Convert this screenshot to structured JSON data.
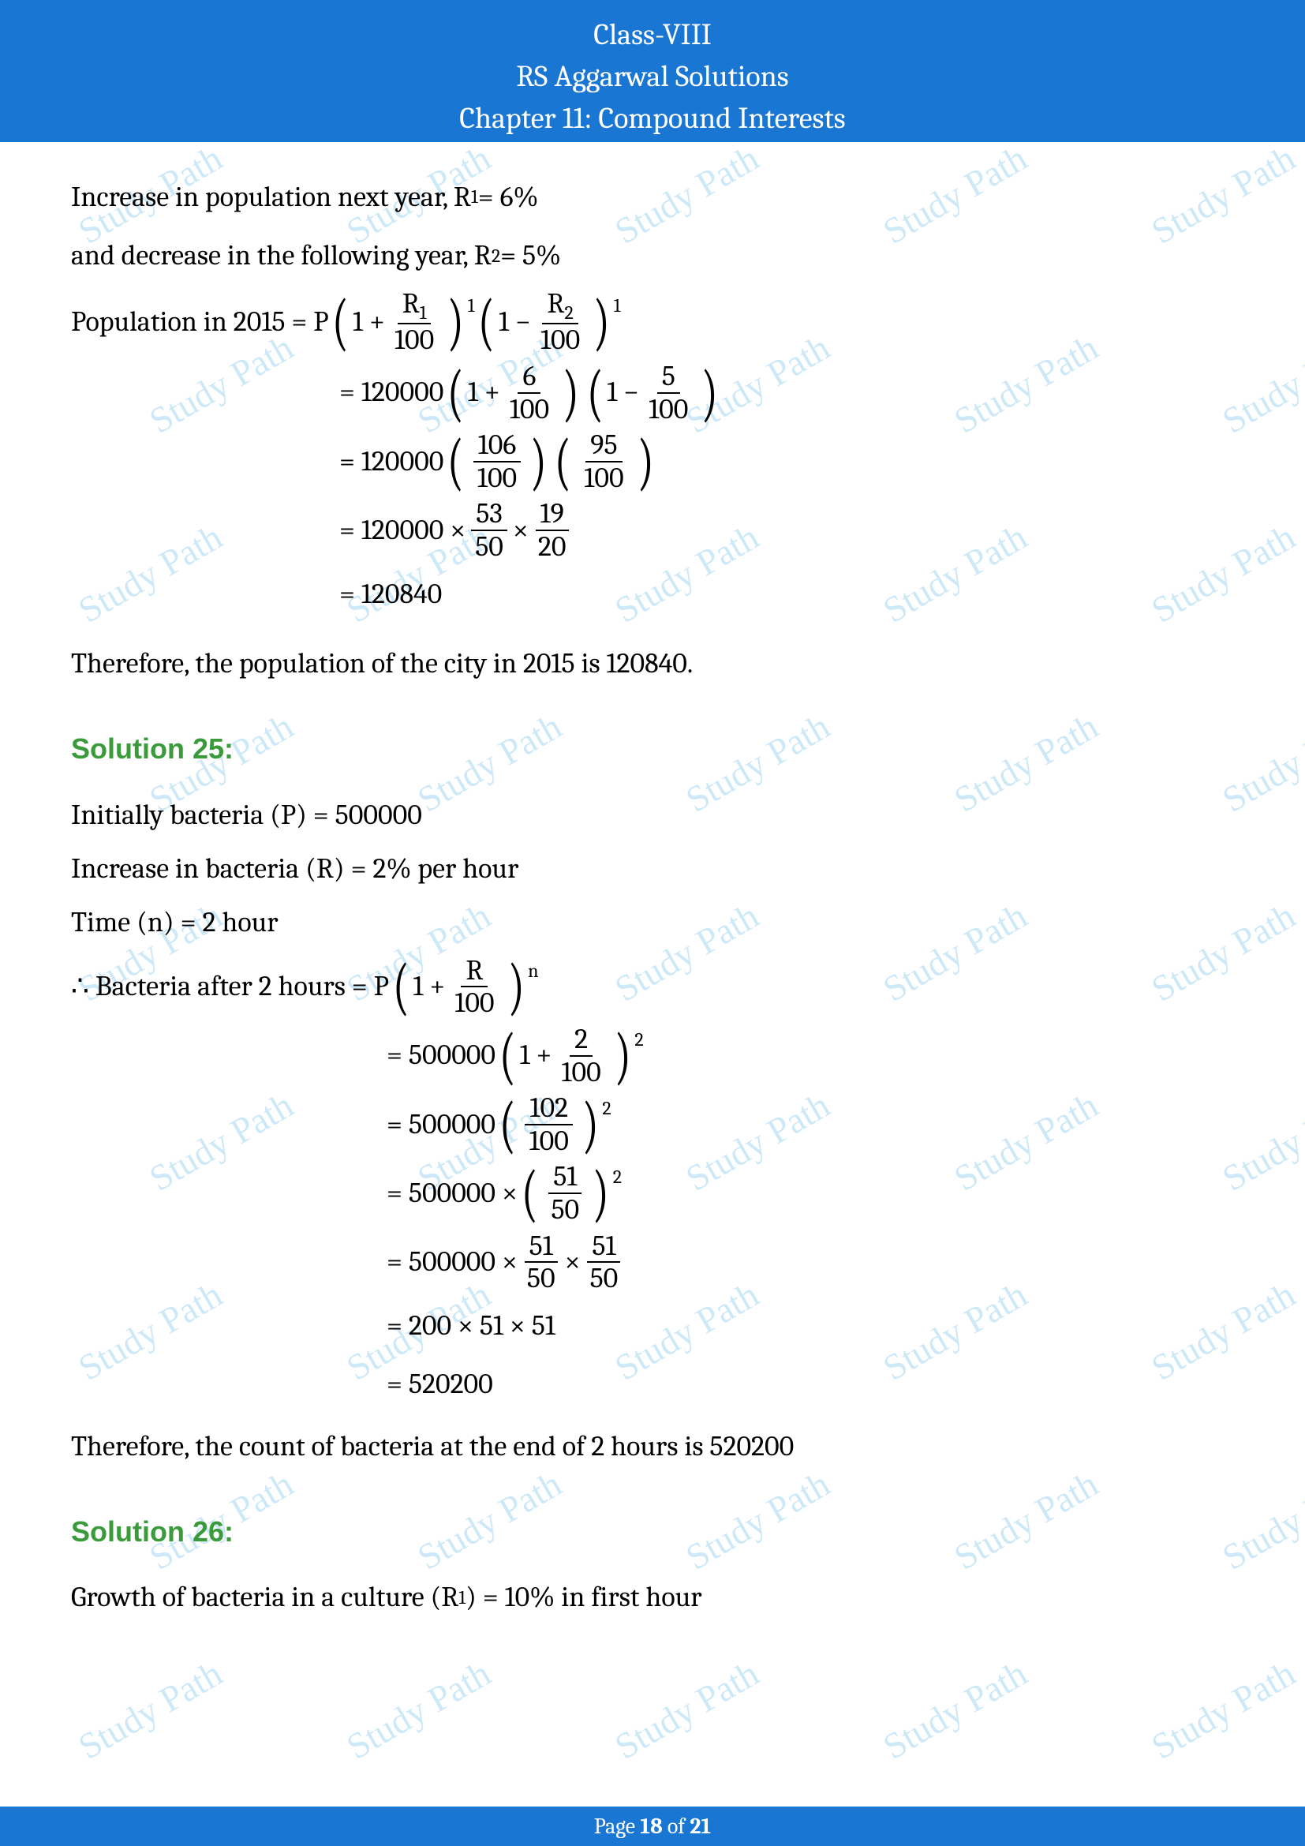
{
  "header": {
    "line1": "Class-VIII",
    "line2": "RS Aggarwal Solutions",
    "line3": "Chapter 11: Compound Interests"
  },
  "footer": {
    "prefix": "Page ",
    "current": "18",
    "sep": " of ",
    "total": "21"
  },
  "watermark": "Study Path",
  "body": {
    "p1": "Increase in population next year, R",
    "p1sub": "1",
    "p1b": " = 6%",
    "p2": "and decrease in the following year, R",
    "p2sub": "2",
    "p2b": " = 5%",
    "p3": "Population in 2015 = P ",
    "formula1": {
      "lp1": "(",
      "rp1": ")",
      "one": "1 + ",
      "r1num": "R",
      "r1sub": "1",
      "r1den": "100",
      "exp1": "1",
      "mid": " ",
      "lp2": "(",
      "rp2": ")",
      "one2": "1 − ",
      "r2num": "R",
      "r2sub": "2",
      "r2den": "100",
      "exp2": "1"
    },
    "step1": {
      "eq": "= 120000 ",
      "lp1": "(",
      "rp1": ")",
      "a": "1 + ",
      "n1": "6",
      "d1": "100",
      "lp2": "(",
      "rp2": ")",
      "b": "1 − ",
      "n2": "5",
      "d2": "100"
    },
    "step2": {
      "eq": "= 120000 ",
      "lp1": "(",
      "rp1": ")",
      "n1": "106",
      "d1": "100",
      "lp2": "(",
      "rp2": ")",
      "n2": "95",
      "d2": "100"
    },
    "step3": {
      "eq": "= 120000 × ",
      "n1": "53",
      "d1": "50",
      "mul": " × ",
      "n2": "19",
      "d2": "20"
    },
    "step4": "= 120840",
    "concl1": "Therefore, the population of the city in 2015 is 120840.",
    "sol25": "Solution 25:",
    "s25l1": "Initially bacteria (P) = 500000",
    "s25l2": "Increase in bacteria (R) = 2% per hour",
    "s25l3": "Time (n) = 2 hour",
    "s25l4": "∴ Bacteria after 2 hours = P ",
    "formula2": {
      "lp": "(",
      "rp": ")",
      "a": "1 + ",
      "num": "R",
      "den": "100",
      "exp": "n"
    },
    "s25s1": {
      "eq": "= 500000 ",
      "lp": "(",
      "rp": ")",
      "a": "1 + ",
      "n": "2",
      "d": "100",
      "exp": "2"
    },
    "s25s2": {
      "eq": "= 500000 ",
      "lp": "(",
      "rp": ")",
      "n": "102",
      "d": "100",
      "exp": "2"
    },
    "s25s3": {
      "eq": "= 500000 × ",
      "lp": "(",
      "rp": ")",
      "n": "51",
      "d": "50",
      "exp": "2"
    },
    "s25s4": {
      "eq": "= 500000 × ",
      "n1": "51",
      "d1": "50",
      "m": " × ",
      "n2": "51",
      "d2": "50"
    },
    "s25s5": "= 200 × 51 × 51",
    "s25s6": "= 520200",
    "concl2": "Therefore, the count of bacteria at the end of 2 hours is 520200",
    "sol26": "Solution 26:",
    "s26l1a": "Growth of bacteria in a culture (R",
    "s26l1sub": "1",
    "s26l1b": ") = 10% in first hour"
  },
  "colors": {
    "header_bg": "#1976d2",
    "header_text": "#ffffff",
    "body_text": "#000000",
    "solution_heading": "#3b9b3b",
    "watermark": "#3ba8e0",
    "page_bg": "#ffffff"
  }
}
